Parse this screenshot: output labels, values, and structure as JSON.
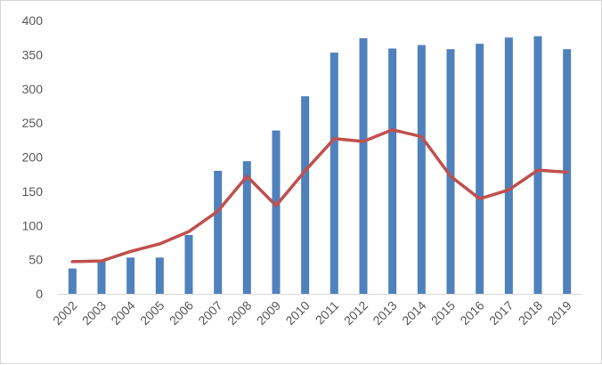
{
  "chart_data": {
    "type": "bar",
    "categories": [
      "2002",
      "2003",
      "2004",
      "2005",
      "2006",
      "2007",
      "2008",
      "2009",
      "2010",
      "2011",
      "2012",
      "2013",
      "2014",
      "2015",
      "2016",
      "2017",
      "2018",
      "2019"
    ],
    "series": [
      {
        "type": "bar",
        "color": "#4f81bd",
        "values": [
          37,
          48,
          53,
          53,
          86,
          180,
          194,
          239,
          289,
          353,
          374,
          359,
          364,
          358,
          366,
          375,
          377,
          358
        ]
      },
      {
        "type": "line",
        "color": "#c0504d",
        "values": [
          47,
          48,
          62,
          73,
          91,
          121,
          172,
          129,
          180,
          227,
          223,
          240,
          230,
          172,
          139,
          152,
          181,
          178
        ]
      }
    ],
    "title": "",
    "xlabel": "",
    "ylabel": "",
    "ylim": [
      0,
      400
    ],
    "yticks": [
      0,
      50,
      100,
      150,
      200,
      250,
      300,
      350,
      400
    ],
    "legend": "none",
    "grid": false
  }
}
